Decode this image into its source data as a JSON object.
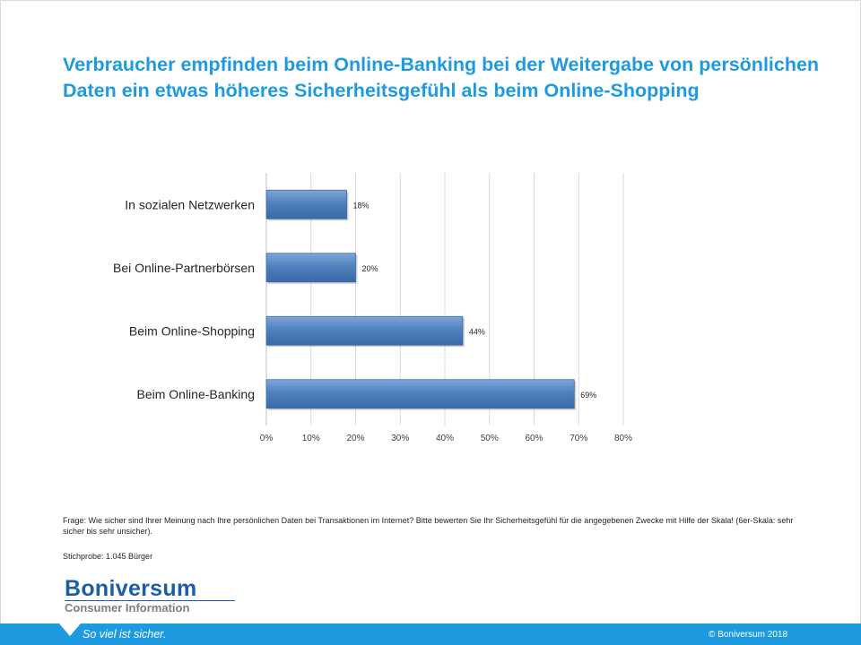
{
  "title": "Verbraucher empfinden beim Online-Banking bei der Weitergabe von persönlichen Daten ein etwas höheres Sicherheitsgefühl als beim Online-Shopping",
  "chart_data": {
    "type": "bar",
    "orientation": "horizontal",
    "categories": [
      "In sozialen Netzwerken",
      "Bei Online-Partnerbörsen",
      "Beim Online-Shopping",
      "Beim Online-Banking"
    ],
    "values": [
      18,
      20,
      44,
      69
    ],
    "value_labels": [
      "18%",
      "20%",
      "44%",
      "69%"
    ],
    "xlim": [
      0,
      80
    ],
    "x_ticks": [
      0,
      10,
      20,
      30,
      40,
      50,
      60,
      70,
      80
    ],
    "x_tick_labels": [
      "0%",
      "10%",
      "20%",
      "30%",
      "40%",
      "50%",
      "60%",
      "70%",
      "80%"
    ],
    "grid": true,
    "bar_color": "#4f81bd",
    "title": "",
    "xlabel": "",
    "ylabel": ""
  },
  "footnote": "Frage: Wie sicher sind Ihrer Meinung  nach Ihre persönlichen Daten  bei Transaktionen im Internet?  Bitte bewerten Sie Ihr Sicherheitsgefühl für die angegebenen Zwecke mit Hilfe der Skala!  (6er-Skala: sehr sicher bis sehr unsicher).",
  "sample": "Stichprobe: 1.045 Bürger",
  "logo": {
    "name": "Boniversum",
    "subtitle": "Consumer Information"
  },
  "footer": {
    "slogan": "So viel ist sicher.",
    "copyright": "© Boniversum 2018"
  },
  "colors": {
    "accent": "#1e9be0",
    "brand": "#1b5ea8",
    "bar": "#4f81bd"
  }
}
